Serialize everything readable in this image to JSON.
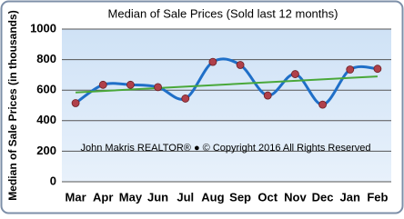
{
  "chart_data": {
    "type": "line",
    "title": "Median of Sale Prices (Sold last 12 months)",
    "y_label": "Median of Sale Prices (in thousands)",
    "annotation": "John Makris REALTOR®  ●  © Copyright 2016 All Rights Reserved",
    "categories": [
      "Mar",
      "Apr",
      "May",
      "Jun",
      "Jul",
      "Aug",
      "Sep",
      "Oct",
      "Nov",
      "Dec",
      "Jan",
      "Feb"
    ],
    "series": [
      {
        "color": "#1f6fc8",
        "marker_color": "#b0404a",
        "values": [
          515,
          635,
          635,
          620,
          545,
          785,
          765,
          565,
          705,
          505,
          735,
          740
        ]
      }
    ],
    "trend_line": {
      "color": "#4aa83a",
      "values": [
        585,
        690
      ]
    },
    "ylim": [
      0,
      1000
    ],
    "yticks": [
      0,
      200,
      400,
      600,
      800,
      1000
    ],
    "grid": true
  }
}
